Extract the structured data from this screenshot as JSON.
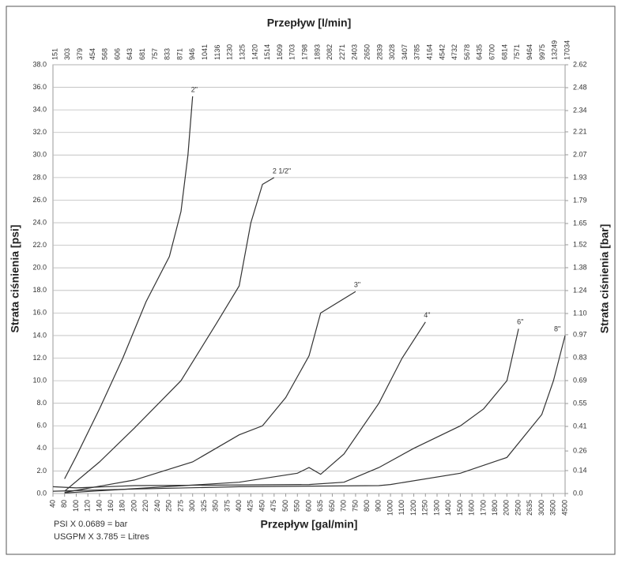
{
  "chart_data": {
    "type": "line",
    "title": "Przepływ [l/min]",
    "x_label": "Przepływ [gal/min]",
    "y_label": "Strata ciśnienia [psi]",
    "y2_label": "Strata ciśnienia [bar]",
    "annotations": [
      "PSI X 0.0689 = bar",
      "USGPM X 3.785 = Litres"
    ],
    "xticks": [
      40,
      80,
      100,
      120,
      140,
      160,
      180,
      200,
      220,
      240,
      250,
      275,
      300,
      325,
      350,
      375,
      400,
      425,
      450,
      475,
      500,
      550,
      600,
      635,
      650,
      700,
      750,
      800,
      900,
      1000,
      1100,
      1200,
      1250,
      1300,
      1400,
      1500,
      1600,
      1700,
      1800,
      2000,
      2500,
      2635,
      3000,
      3500,
      4500
    ],
    "x2ticks": [
      151,
      303,
      379,
      454,
      568,
      606,
      643,
      681,
      757,
      833,
      871,
      946,
      1041,
      1136,
      1230,
      1325,
      1420,
      1514,
      1609,
      1703,
      1798,
      1893,
      2082,
      2271,
      2403,
      2650,
      2839,
      3028,
      3407,
      3785,
      4164,
      4542,
      4732,
      5678,
      6435,
      6700,
      6814,
      7571,
      9464,
      9975,
      13249,
      17034
    ],
    "ylim": [
      0,
      38
    ],
    "yticks": [
      {
        "value": 0,
        "label": "0.0"
      },
      {
        "value": 2,
        "label": "2.0"
      },
      {
        "value": 4,
        "label": "4.0"
      },
      {
        "value": 6,
        "label": "6.0"
      },
      {
        "value": 8,
        "label": "8.0"
      },
      {
        "value": 10,
        "label": "10.0"
      },
      {
        "value": 12,
        "label": "12.0"
      },
      {
        "value": 14,
        "label": "14.0"
      },
      {
        "value": 16,
        "label": "16.0"
      },
      {
        "value": 18,
        "label": "18.0"
      },
      {
        "value": 20,
        "label": "20.0"
      },
      {
        "value": 22,
        "label": "22.0"
      },
      {
        "value": 24,
        "label": "24.0"
      },
      {
        "value": 26,
        "label": "26.0"
      },
      {
        "value": 28,
        "label": "28.0"
      },
      {
        "value": 30,
        "label": "30.0"
      },
      {
        "value": 32,
        "label": "32.0"
      },
      {
        "value": 34,
        "label": "34.0"
      },
      {
        "value": 36,
        "label": "36.0"
      },
      {
        "value": 38,
        "label": "38.0"
      }
    ],
    "y2lim": [
      0,
      2.62
    ],
    "y2ticks": [
      {
        "value": 0,
        "label": "0.0"
      },
      0.14,
      0.26,
      0.41,
      0.55,
      0.69,
      0.83,
      0.97,
      {
        "value": 1.1,
        "label": "1.10"
      },
      1.24,
      1.38,
      1.52,
      1.65,
      1.79,
      1.93,
      2.07,
      2.21,
      2.34,
      2.48,
      2.62
    ],
    "grid": true,
    "series": [
      {
        "name": "2\"",
        "color": "#333333",
        "x": [
          80,
          100,
          140,
          180,
          220,
          250,
          275,
          290,
          300
        ],
        "values": [
          1.3,
          3.3,
          7.5,
          12,
          17,
          21,
          25,
          30,
          35.2
        ]
      },
      {
        "name": "2 1/2\"",
        "color": "#333333",
        "x": [
          80,
          140,
          200,
          275,
          350,
          400,
          425,
          450,
          475
        ],
        "values": [
          0.2,
          2.8,
          5.8,
          10,
          15,
          18.4,
          24,
          27.4,
          28
        ]
      },
      {
        "name": "3\"",
        "color": "#333333",
        "x": [
          80,
          200,
          300,
          400,
          450,
          500,
          600,
          635,
          750
        ],
        "values": [
          0.1,
          1.2,
          2.8,
          5.2,
          6,
          8.5,
          12.2,
          16,
          17.9
        ]
      },
      {
        "name": "4\"",
        "color": "#333333",
        "x": [
          80,
          400,
          550,
          600,
          635,
          700,
          900,
          1100,
          1250
        ],
        "values": [
          0.05,
          1,
          1.8,
          2.3,
          1.7,
          3.5,
          8,
          12,
          15.2
        ]
      },
      {
        "name": "6\"",
        "color": "#333333",
        "x": [
          40,
          100,
          200,
          600,
          700,
          900,
          1200,
          1500,
          1700,
          2000,
          2500
        ],
        "values": [
          0.6,
          0.5,
          0.7,
          0.8,
          1,
          2.3,
          4,
          6,
          7.5,
          10,
          14.6
        ]
      },
      {
        "name": "8\"",
        "color": "#333333",
        "x": [
          40,
          200,
          400,
          900,
          1000,
          1500,
          2000,
          3000,
          3500,
          4500
        ],
        "values": [
          0.2,
          0.4,
          0.6,
          0.7,
          0.8,
          1.8,
          3.2,
          7,
          10,
          14
        ]
      }
    ]
  }
}
